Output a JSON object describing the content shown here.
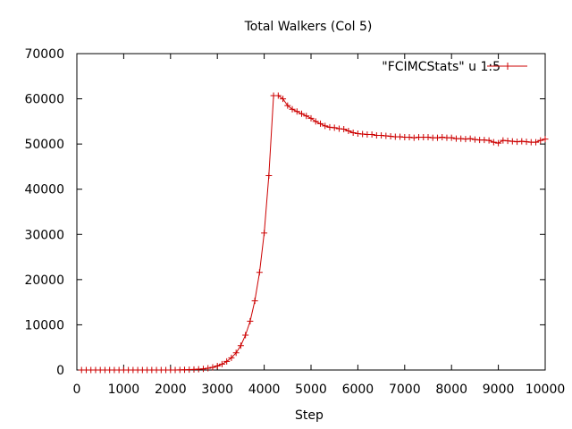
{
  "chart_data": {
    "type": "line",
    "title": "Total Walkers (Col 5)",
    "xlabel": "Step",
    "ylabel": "",
    "xlim": [
      0,
      10000
    ],
    "ylim": [
      0,
      70000
    ],
    "xticks": [
      0,
      1000,
      2000,
      3000,
      4000,
      5000,
      6000,
      7000,
      8000,
      9000,
      10000
    ],
    "xtick_labels": [
      "0",
      "1000",
      "2000",
      "3000",
      "4000",
      "5000",
      "6000",
      "7000",
      "8000",
      "9000",
      "10000"
    ],
    "yticks": [
      0,
      10000,
      20000,
      30000,
      40000,
      50000,
      60000,
      70000
    ],
    "ytick_labels": [
      "0",
      "10000",
      "20000",
      "30000",
      "40000",
      "50000",
      "60000",
      "70000"
    ],
    "grid": false,
    "legend_position": "top-right",
    "series": [
      {
        "name": "\"FCIMCStats\" u 1:5",
        "color": "#cc0000",
        "marker": "plus",
        "x": [
          100,
          200,
          300,
          400,
          500,
          600,
          700,
          800,
          900,
          1000,
          1100,
          1200,
          1300,
          1400,
          1500,
          1600,
          1700,
          1800,
          1900,
          2000,
          2100,
          2200,
          2300,
          2400,
          2500,
          2600,
          2700,
          2800,
          2900,
          3000,
          3100,
          3200,
          3300,
          3400,
          3500,
          3600,
          3700,
          3800,
          3900,
          4000,
          4100,
          4200,
          4300,
          4400,
          4500,
          4600,
          4700,
          4800,
          4900,
          5000,
          5100,
          5200,
          5300,
          5400,
          5500,
          5600,
          5700,
          5800,
          5900,
          6000,
          6100,
          6200,
          6300,
          6400,
          6500,
          6600,
          6700,
          6800,
          6900,
          7000,
          7100,
          7200,
          7300,
          7400,
          7500,
          7600,
          7700,
          7800,
          7900,
          8000,
          8100,
          8200,
          8300,
          8400,
          8500,
          8600,
          8700,
          8800,
          8900,
          9000,
          9100,
          9200,
          9300,
          9400,
          9500,
          9600,
          9700,
          9800,
          9900,
          10000
        ],
        "y": [
          0,
          0,
          0,
          0,
          0,
          0,
          0,
          0,
          0,
          0,
          0,
          0,
          0,
          0,
          0,
          0,
          0,
          0,
          0,
          0,
          0,
          20,
          50,
          80,
          120,
          180,
          250,
          400,
          600,
          900,
          1300,
          1900,
          2700,
          3800,
          5400,
          7700,
          10800,
          15300,
          21600,
          30300,
          43000,
          60700,
          60700,
          60000,
          58500,
          57700,
          57200,
          56700,
          56200,
          55700,
          55000,
          54500,
          54000,
          53700,
          53600,
          53400,
          53300,
          52900,
          52500,
          52300,
          52200,
          52100,
          52100,
          51900,
          51900,
          51800,
          51700,
          51600,
          51600,
          51500,
          51500,
          51400,
          51500,
          51500,
          51500,
          51400,
          51400,
          51500,
          51400,
          51400,
          51200,
          51200,
          51100,
          51200,
          51000,
          50900,
          50900,
          50800,
          50400,
          50200,
          50800,
          50700,
          50600,
          50500,
          50600,
          50500,
          50400,
          50400,
          50800,
          51100
        ]
      }
    ]
  }
}
